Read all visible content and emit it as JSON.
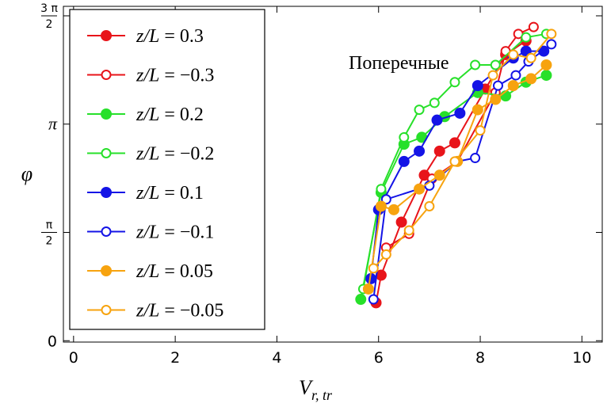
{
  "chart_data": {
    "type": "line",
    "title": "",
    "xlabel": {
      "main": "V",
      "sub": "r, tr"
    },
    "ylabel": "φ",
    "xlim": [
      -0.2,
      10.4
    ],
    "ylim": [
      -0.02,
      4.85
    ],
    "xticks": [
      {
        "value": 0,
        "label": "0"
      },
      {
        "value": 2,
        "label": "2"
      },
      {
        "value": 4,
        "label": "4"
      },
      {
        "value": 6,
        "label": "6"
      },
      {
        "value": 8,
        "label": "8"
      },
      {
        "value": 10,
        "label": "10"
      }
    ],
    "yticks": [
      {
        "value": 0,
        "kind": "plain",
        "label": "0"
      },
      {
        "value": 1.5708,
        "kind": "fraction",
        "num": "π",
        "den": "2"
      },
      {
        "value": 3.1416,
        "kind": "plain",
        "label": "π"
      },
      {
        "value": 4.7124,
        "kind": "fraction",
        "num": "3 π",
        "den": "2"
      }
    ],
    "annotation": "Поперечные",
    "legend_position": "top-left",
    "series": [
      {
        "name": "z/L = 0.3",
        "label_parts": [
          "z/L",
          " = 0.3"
        ],
        "color": "#e8141a",
        "filled": true,
        "x": [
          5.95,
          6.05,
          6.45,
          6.9,
          7.2,
          7.5,
          8.1,
          8.5,
          8.9
        ],
        "y": [
          0.55,
          0.95,
          1.72,
          2.4,
          2.75,
          2.87,
          3.65,
          4.15,
          4.35
        ]
      },
      {
        "name": "z/L = −0.3",
        "label_parts": [
          "z/L",
          " = −0.3"
        ],
        "color": "#e8141a",
        "filled": false,
        "x": [
          6.15,
          6.6,
          7.05,
          7.55,
          8.3,
          8.5,
          8.75,
          9.05
        ],
        "y": [
          1.35,
          1.55,
          2.35,
          2.6,
          3.6,
          4.2,
          4.45,
          4.55
        ]
      },
      {
        "name": "z/L = 0.2",
        "label_parts": [
          "z/L",
          " = 0.2"
        ],
        "color": "#27e02a",
        "filled": true,
        "x": [
          5.65,
          6.05,
          6.5,
          6.85,
          7.3,
          7.95,
          8.5,
          8.9,
          9.3
        ],
        "y": [
          0.6,
          2.15,
          2.85,
          2.95,
          3.25,
          3.6,
          3.55,
          3.75,
          3.85
        ]
      },
      {
        "name": "z/L = −0.2",
        "label_parts": [
          "z/L",
          " = −0.2"
        ],
        "color": "#27e02a",
        "filled": false,
        "x": [
          5.7,
          6.05,
          6.5,
          6.8,
          7.1,
          7.5,
          7.9,
          8.3,
          8.9,
          9.3
        ],
        "y": [
          0.75,
          2.2,
          2.95,
          3.35,
          3.45,
          3.75,
          4.0,
          4.0,
          4.4,
          4.45
        ]
      },
      {
        "name": "z/L = 0.1",
        "label_parts": [
          "z/L",
          " = 0.1"
        ],
        "color": "#1414e6",
        "filled": true,
        "x": [
          5.85,
          6.0,
          6.5,
          6.8,
          7.15,
          7.6,
          7.95,
          8.65,
          8.9,
          9.25
        ],
        "y": [
          0.9,
          1.9,
          2.6,
          2.75,
          3.2,
          3.3,
          3.7,
          4.1,
          4.2,
          4.2
        ]
      },
      {
        "name": "z/L = −0.1",
        "label_parts": [
          "z/L",
          " = −0.1"
        ],
        "color": "#1414e6",
        "filled": false,
        "x": [
          5.9,
          6.15,
          7.0,
          7.55,
          7.9,
          8.35,
          8.7,
          8.95,
          9.4
        ],
        "y": [
          0.6,
          2.05,
          2.25,
          2.6,
          2.65,
          3.7,
          3.85,
          4.05,
          4.3
        ]
      },
      {
        "name": "z/L = 0.05",
        "label_parts": [
          "z/L",
          " = 0.05"
        ],
        "color": "#f7a30f",
        "filled": true,
        "x": [
          5.8,
          6.05,
          6.3,
          6.8,
          7.2,
          7.55,
          7.95,
          8.3,
          8.65,
          9.0,
          9.3
        ],
        "y": [
          0.75,
          1.95,
          1.9,
          2.2,
          2.4,
          2.6,
          3.35,
          3.5,
          3.7,
          3.8,
          4.0
        ]
      },
      {
        "name": "z/L = −0.05",
        "label_parts": [
          "z/L",
          " = −0.05"
        ],
        "color": "#f7a30f",
        "filled": false,
        "x": [
          5.9,
          6.15,
          6.6,
          7.0,
          7.5,
          8.0,
          8.25,
          8.65,
          9.0,
          9.4
        ],
        "y": [
          1.05,
          1.25,
          1.6,
          1.95,
          2.6,
          3.05,
          3.85,
          4.15,
          4.1,
          4.45
        ]
      }
    ]
  }
}
